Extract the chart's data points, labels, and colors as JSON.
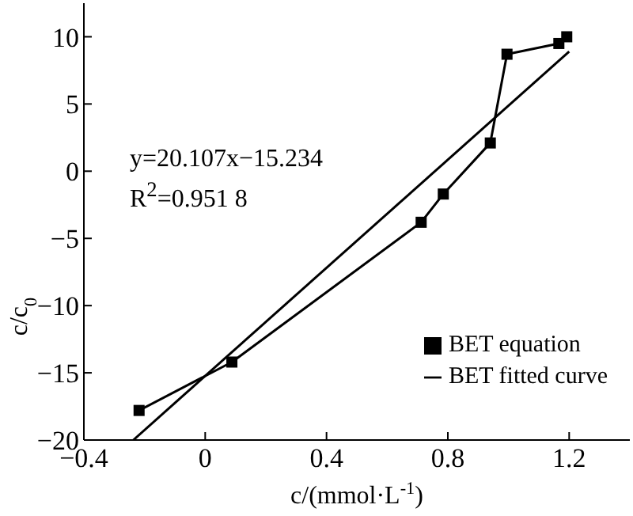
{
  "chart_data": {
    "type": "line",
    "xlabel": "c/(mmol·L$^{-1}$)",
    "ylabel": "c/c$_{0}$",
    "xlim": [
      -0.4,
      1.4
    ],
    "xticks": [
      -0.4,
      0,
      0.4,
      0.8,
      1.2
    ],
    "ylim": [
      -20,
      12.5
    ],
    "yticks": [
      -20,
      -15,
      -10,
      -5,
      0,
      5,
      10
    ],
    "grid": false,
    "legend": "bottom right",
    "line_style": "solid",
    "annotations": [
      "y=20.107x−15.234",
      "R$^{2}$=0.951 8"
    ],
    "series": [
      {
        "name": "BET equation",
        "marker": "square",
        "color": "#000000",
        "x": [
          -0.218,
          0.088,
          0.712,
          0.785,
          0.94,
          0.995,
          1.166,
          1.192
        ],
        "values": [
          -17.8,
          -14.2,
          -3.8,
          -1.7,
          2.1,
          8.7,
          9.5,
          10.0
        ]
      },
      {
        "name": "BET fitted curve",
        "marker": "none",
        "color": "#000000",
        "x": [
          -0.237,
          1.2
        ],
        "values": [
          -20.0,
          8.9
        ]
      }
    ]
  }
}
